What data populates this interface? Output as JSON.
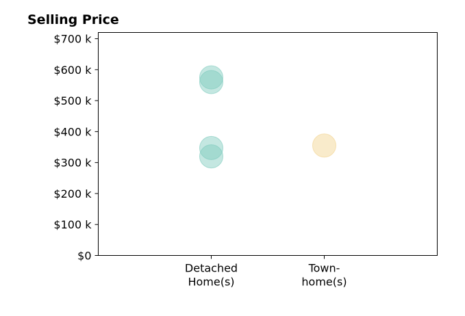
{
  "chart_data": {
    "type": "scatter",
    "title": "Selling Price",
    "xlabel": "",
    "ylabel": "",
    "categories": [
      {
        "lines": [
          "Detached",
          "Home(s)"
        ]
      },
      {
        "lines": [
          "Town-",
          "home(s)"
        ]
      }
    ],
    "y_ticks": [
      {
        "value": 0,
        "label": "$0"
      },
      {
        "value": 100000,
        "label": "$100 k"
      },
      {
        "value": 200000,
        "label": "$200 k"
      },
      {
        "value": 300000,
        "label": "$300 k"
      },
      {
        "value": 400000,
        "label": "$400 k"
      },
      {
        "value": 500000,
        "label": "$500 k"
      },
      {
        "value": 600000,
        "label": "$600 k"
      },
      {
        "value": 700000,
        "label": "$700 k"
      }
    ],
    "ylim": [
      0,
      720000
    ],
    "x_range": [
      -1,
      2
    ],
    "grid": false,
    "points": [
      {
        "category": 0,
        "value": 560000,
        "color": "#7ccabd"
      },
      {
        "category": 0,
        "value": 575000,
        "color": "#7ccabd"
      },
      {
        "category": 0,
        "value": 347000,
        "color": "#7ccabd"
      },
      {
        "category": 0,
        "value": 320000,
        "color": "#7ccabd"
      },
      {
        "category": 1,
        "value": 355000,
        "color": "#f1d28c"
      }
    ]
  }
}
